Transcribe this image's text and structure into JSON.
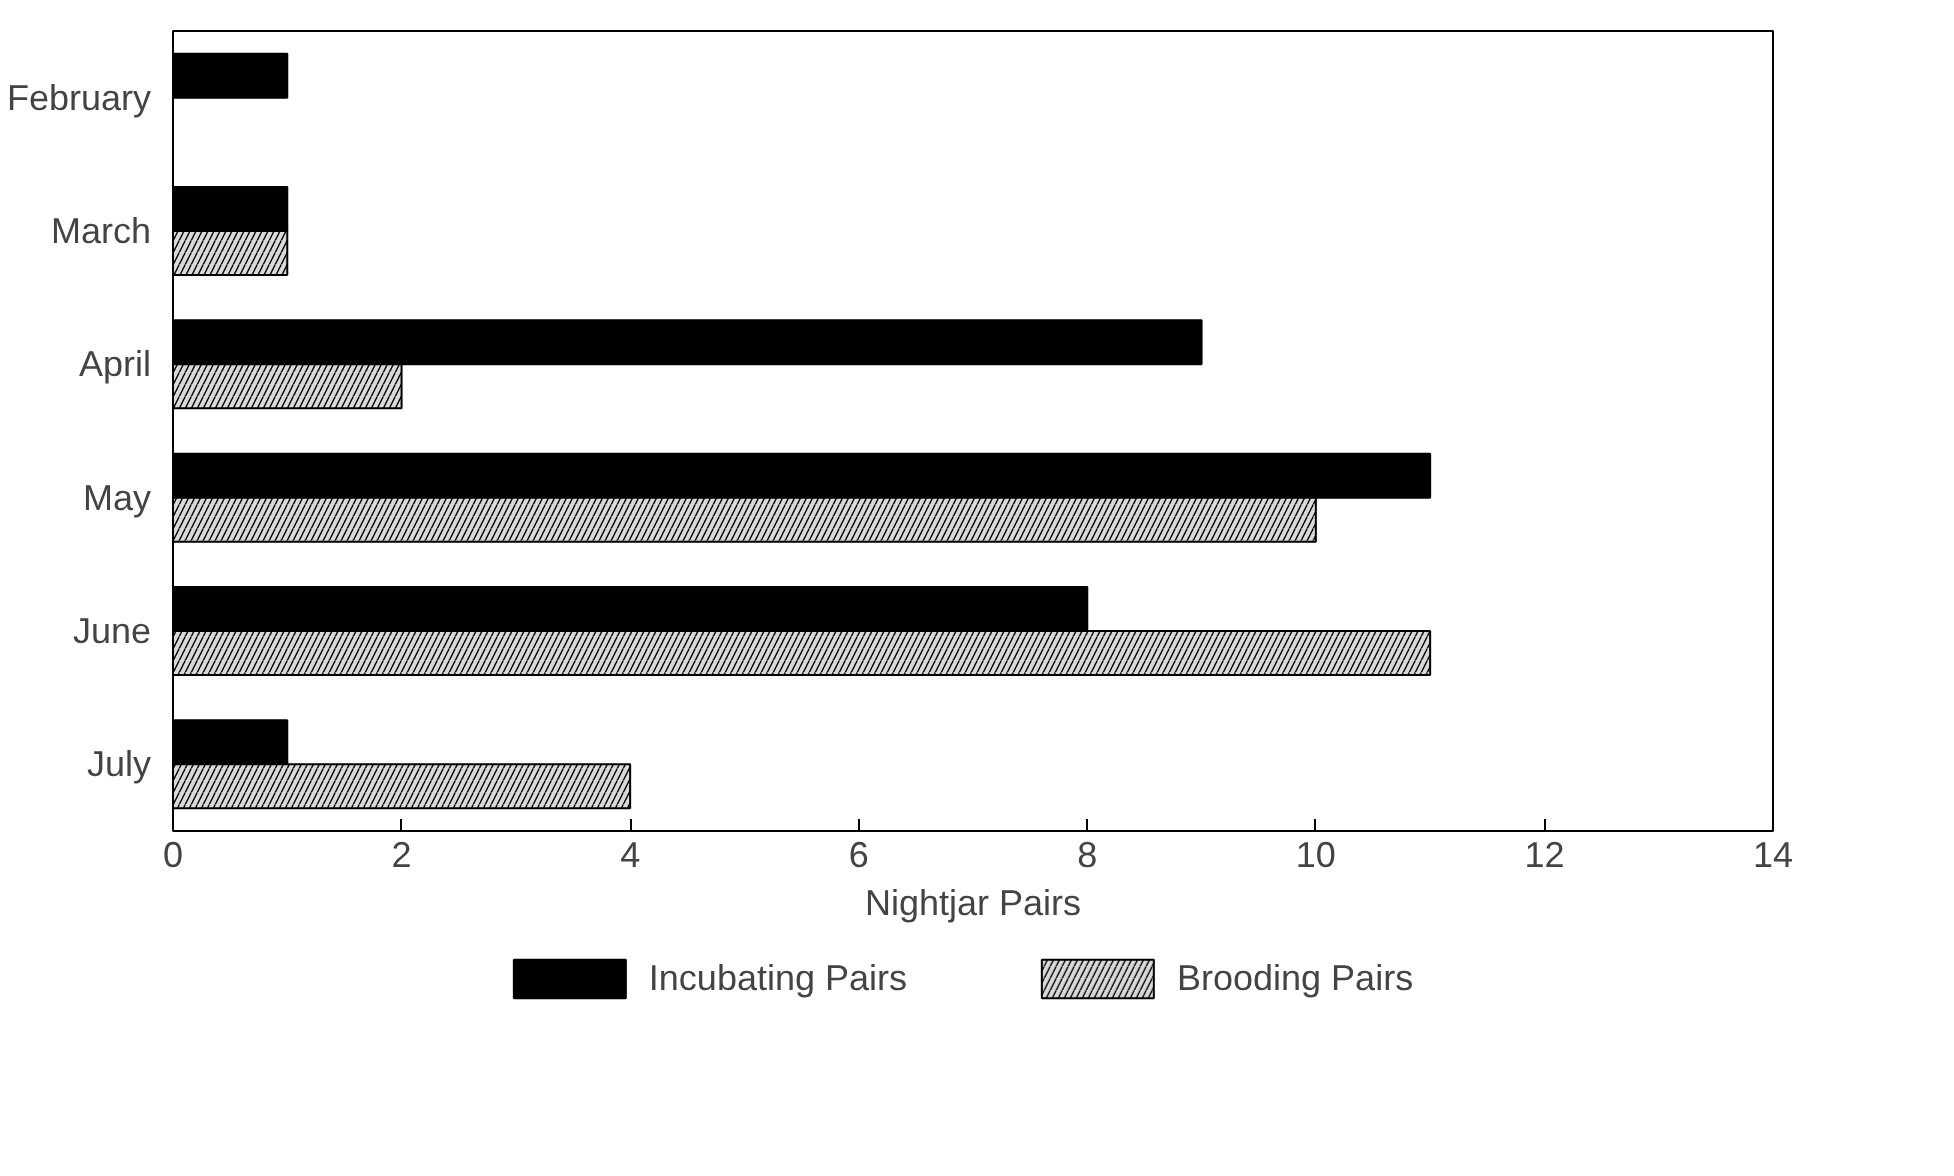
{
  "chart_data": {
    "type": "bar",
    "orientation": "horizontal",
    "xlabel": "Nightjar Pairs",
    "categories": [
      "February",
      "March",
      "April",
      "May",
      "June",
      "July"
    ],
    "series": [
      {
        "name": "Incubating Pairs",
        "color": "#000000",
        "values": [
          1,
          1,
          9,
          11,
          8,
          1
        ]
      },
      {
        "name": "Brooding Pairs",
        "color": "#d9d9d9",
        "values": [
          null,
          1,
          2,
          10,
          11,
          4
        ]
      }
    ],
    "xlim": [
      0,
      14
    ],
    "xticks": [
      0,
      2,
      4,
      6,
      8,
      10,
      12,
      14
    ],
    "grid": false,
    "legend": "bottom"
  }
}
